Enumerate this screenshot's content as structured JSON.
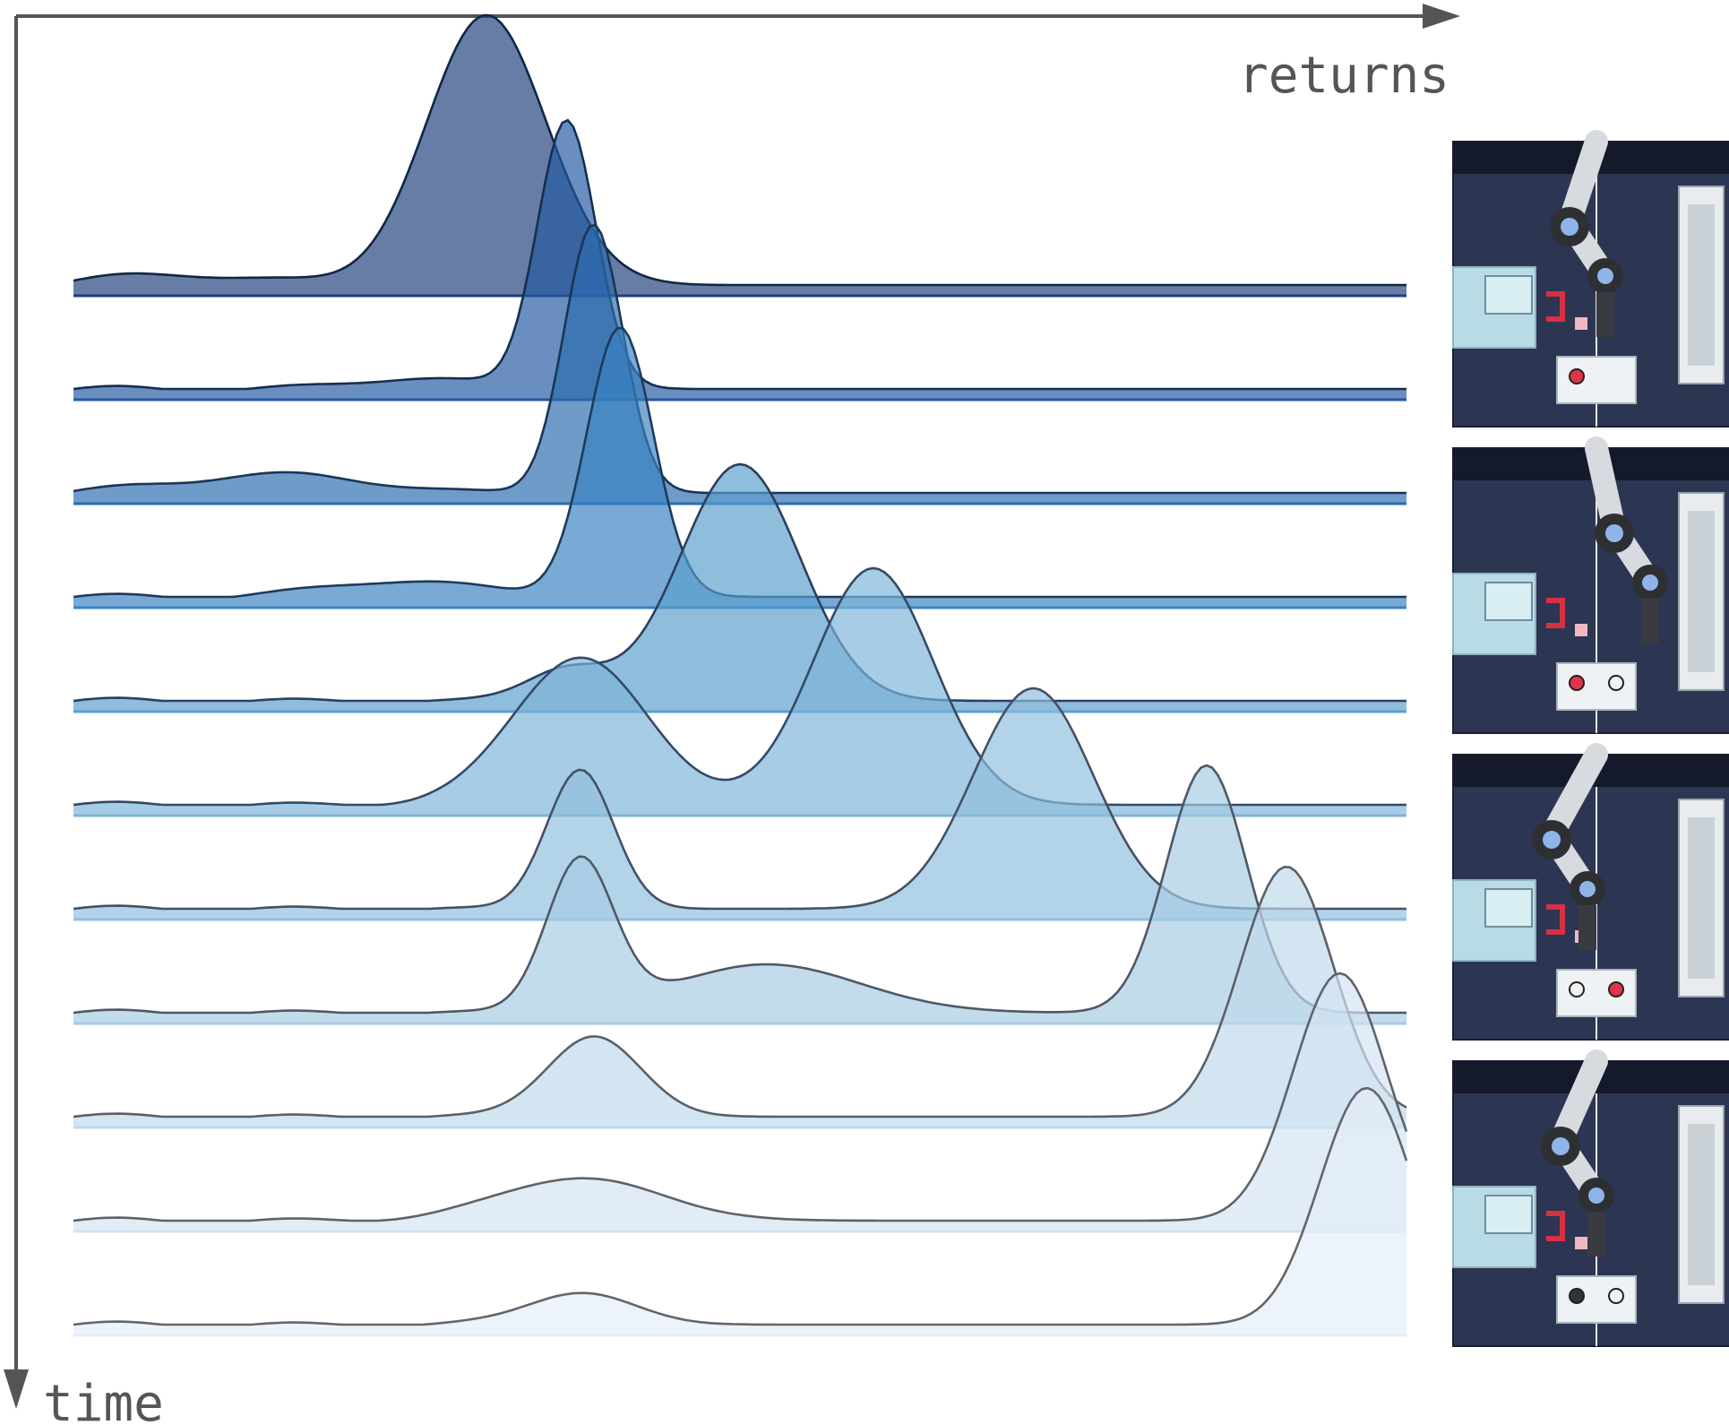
{
  "axes": {
    "x_label": "returns",
    "y_label": "time"
  },
  "colors": {
    "axis": "#555555",
    "ridge_fills": [
      "#1f3f7a",
      "#2458a0",
      "#2b6cb0",
      "#3a82c1",
      "#5a9dcc",
      "#7eb4d8",
      "#8fbedd",
      "#a5cbe3",
      "#bfd8ec",
      "#d3e3f1",
      "#e4edf7"
    ],
    "ridge_lines": [
      "#0f2744",
      "#14304f",
      "#1a3556",
      "#1e3a5c",
      "#2a4060",
      "#344a66",
      "#455066",
      "#4f5866",
      "#5a6068",
      "#5f6368",
      "#63666a"
    ],
    "thumb_bg": "#2c3552"
  },
  "chart_data": {
    "type": "area",
    "subtype": "ridgeline",
    "title": "",
    "xlabel": "returns",
    "ylabel": "time",
    "legend": "none",
    "grid": false,
    "x_range": [
      0,
      1
    ],
    "series": [
      {
        "peaks": [
          {
            "mu": 0.31,
            "sigma": 0.045,
            "height": 1.0
          },
          {
            "mu": 0.08,
            "sigma": 0.06,
            "height": 0.04
          }
        ]
      },
      {
        "peaks": [
          {
            "mu": 0.37,
            "sigma": 0.022,
            "height": 1.0
          },
          {
            "mu": 0.26,
            "sigma": 0.05,
            "height": 0.04
          }
        ]
      },
      {
        "peaks": [
          {
            "mu": 0.39,
            "sigma": 0.022,
            "height": 1.0
          },
          {
            "mu": 0.15,
            "sigma": 0.07,
            "height": 0.07
          }
        ]
      },
      {
        "peaks": [
          {
            "mu": 0.41,
            "sigma": 0.025,
            "height": 1.0
          },
          {
            "mu": 0.25,
            "sigma": 0.06,
            "height": 0.06
          }
        ]
      },
      {
        "peaks": [
          {
            "mu": 0.5,
            "sigma": 0.045,
            "height": 0.88
          },
          {
            "mu": 0.37,
            "sigma": 0.03,
            "height": 0.12
          }
        ]
      },
      {
        "peaks": [
          {
            "mu": 0.6,
            "sigma": 0.045,
            "height": 0.88
          },
          {
            "mu": 0.38,
            "sigma": 0.05,
            "height": 0.55
          }
        ]
      },
      {
        "peaks": [
          {
            "mu": 0.72,
            "sigma": 0.045,
            "height": 0.82
          },
          {
            "mu": 0.38,
            "sigma": 0.025,
            "height": 0.52
          }
        ]
      },
      {
        "peaks": [
          {
            "mu": 0.85,
            "sigma": 0.03,
            "height": 0.92
          },
          {
            "mu": 0.38,
            "sigma": 0.025,
            "height": 0.56
          },
          {
            "mu": 0.52,
            "sigma": 0.07,
            "height": 0.18
          }
        ]
      },
      {
        "peaks": [
          {
            "mu": 0.91,
            "sigma": 0.035,
            "height": 0.93
          },
          {
            "mu": 0.39,
            "sigma": 0.035,
            "height": 0.3
          }
        ]
      },
      {
        "peaks": [
          {
            "mu": 0.95,
            "sigma": 0.035,
            "height": 0.92
          },
          {
            "mu": 0.38,
            "sigma": 0.06,
            "height": 0.16
          }
        ]
      },
      {
        "peaks": [
          {
            "mu": 0.97,
            "sigma": 0.035,
            "height": 0.88
          },
          {
            "mu": 0.38,
            "sigma": 0.04,
            "height": 0.12
          }
        ]
      }
    ]
  },
  "thumbnails": [
    {
      "name": "robot-scene-1",
      "buttons": [
        "red",
        "none"
      ]
    },
    {
      "name": "robot-scene-2",
      "buttons": [
        "red",
        "white"
      ]
    },
    {
      "name": "robot-scene-3",
      "buttons": [
        "white",
        "red"
      ]
    },
    {
      "name": "robot-scene-4",
      "buttons": [
        "dark",
        "white"
      ]
    }
  ]
}
